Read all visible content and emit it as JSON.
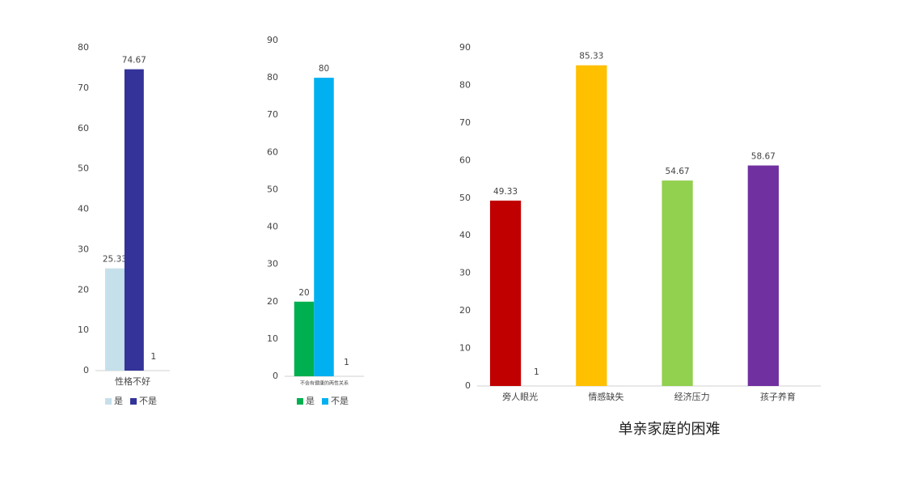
{
  "chart_data": [
    {
      "type": "bar",
      "categories": [
        "性格不好"
      ],
      "series": [
        {
          "name": "是",
          "color": "#c5e0ea",
          "values": [
            25.33
          ]
        },
        {
          "name": "不是",
          "color": "#333399",
          "values": [
            74.67
          ]
        }
      ],
      "ylim": [
        0,
        80
      ],
      "yticks": [
        0,
        10,
        20,
        30,
        40,
        50,
        60,
        70,
        80
      ],
      "annotation": "1",
      "legend": "bottom"
    },
    {
      "type": "bar",
      "categories": [
        "不会有健康的两性关系"
      ],
      "series": [
        {
          "name": "是",
          "color": "#00b050",
          "values": [
            20
          ]
        },
        {
          "name": "不是",
          "color": "#00b0f0",
          "values": [
            80
          ]
        }
      ],
      "ylim": [
        0,
        90
      ],
      "yticks": [
        0,
        10,
        20,
        30,
        40,
        50,
        60,
        70,
        80,
        90
      ],
      "annotation": "1",
      "legend": "bottom"
    },
    {
      "type": "bar",
      "title": "单亲家庭的困难",
      "categories": [
        "旁人眼光",
        "情感缺失",
        "经济压力",
        "孩子养育"
      ],
      "values": [
        49.33,
        85.33,
        54.67,
        58.67
      ],
      "colors": [
        "#c00000",
        "#ffc000",
        "#92d050",
        "#7030a0"
      ],
      "ylim": [
        0,
        90
      ],
      "yticks": [
        0,
        10,
        20,
        30,
        40,
        50,
        60,
        70,
        80,
        90
      ],
      "annotation": "1"
    }
  ]
}
